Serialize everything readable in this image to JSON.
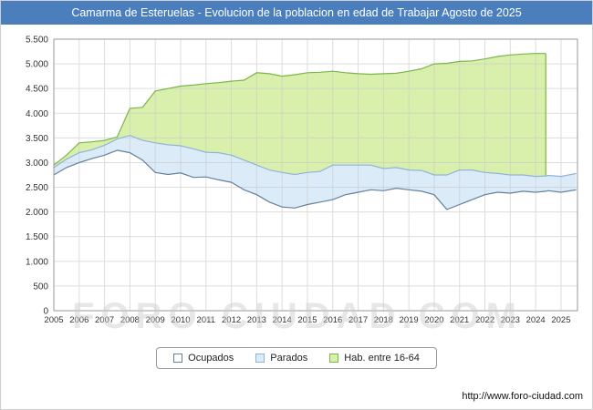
{
  "title": "Camarma de Esteruelas - Evolucion de la poblacion en edad de Trabajar Agosto de 2025",
  "watermark": "FORO-CIUDAD.COM",
  "footer": {
    "url": "http://www.foro-ciudad.com"
  },
  "colors": {
    "titlebar": "#4a7ebd",
    "grid": "#c8c8c8",
    "plot_border": "#999999",
    "axis_text": "#333333"
  },
  "legend": {
    "items": [
      {
        "label": "Ocupados",
        "fill": "#ffffff",
        "stroke": "#64809c"
      },
      {
        "label": "Parados",
        "fill": "#dcebf8",
        "stroke": "#8fb4d8"
      },
      {
        "label": "Hab. entre 16-64",
        "fill": "#d9f0ad",
        "stroke": "#7ab648"
      }
    ]
  },
  "chart_data": {
    "type": "area",
    "title": "Camarma de Esteruelas - Evolucion de la poblacion en edad de Trabajar Agosto de 2025",
    "legend_position": "bottom",
    "grid": true,
    "xlim": [
      2005,
      2025.65
    ],
    "ylim": [
      0,
      5500
    ],
    "yticks": [
      0,
      500,
      1000,
      1500,
      2000,
      2500,
      3000,
      3500,
      4000,
      4500,
      5000,
      5500
    ],
    "ytick_labels": [
      "0",
      "500",
      "1.000",
      "1.500",
      "2.000",
      "2.500",
      "3.000",
      "3.500",
      "4.000",
      "4.500",
      "5.000",
      "5.500"
    ],
    "xticks": [
      2005,
      2006,
      2007,
      2008,
      2009,
      2010,
      2011,
      2012,
      2013,
      2014,
      2015,
      2016,
      2017,
      2018,
      2019,
      2020,
      2021,
      2022,
      2023,
      2024,
      2025
    ],
    "x": [
      2005,
      2005.5,
      2006,
      2006.5,
      2007,
      2007.5,
      2008,
      2008.5,
      2009,
      2009.5,
      2010,
      2010.5,
      2011,
      2011.5,
      2012,
      2012.5,
      2013,
      2013.5,
      2014,
      2014.5,
      2015,
      2015.5,
      2016,
      2016.5,
      2017,
      2017.5,
      2018,
      2018.5,
      2019,
      2019.5,
      2020,
      2020.5,
      2021,
      2021.5,
      2022,
      2022.5,
      2023,
      2023.5,
      2024,
      2024.4,
      2024.5,
      2025,
      2025.6
    ],
    "series": [
      {
        "name": "Ocupados",
        "fill": "#ffffff",
        "stroke": "#64809c",
        "values": [
          2750,
          2900,
          3000,
          3080,
          3150,
          3250,
          3200,
          3050,
          2800,
          2760,
          2790,
          2700,
          2710,
          2650,
          2600,
          2450,
          2350,
          2200,
          2100,
          2080,
          2150,
          2200,
          2250,
          2350,
          2400,
          2450,
          2430,
          2480,
          2450,
          2420,
          2350,
          2050,
          2150,
          2250,
          2350,
          2400,
          2380,
          2420,
          2400,
          2420,
          2430,
          2400,
          2450
        ]
      },
      {
        "name": "Parados",
        "fill": "#dcebf8",
        "stroke": "#8fb4d8",
        "stacked_on": "Ocupados",
        "values": [
          150,
          170,
          200,
          180,
          200,
          230,
          350,
          400,
          600,
          600,
          550,
          580,
          500,
          550,
          550,
          600,
          600,
          650,
          700,
          680,
          650,
          620,
          700,
          600,
          550,
          500,
          450,
          420,
          400,
          420,
          400,
          700,
          700,
          600,
          450,
          380,
          370,
          330,
          320,
          310,
          310,
          320,
          330
        ]
      },
      {
        "name": "Hab. entre 16-64",
        "fill": "#d9f0ad",
        "stroke": "#7ab648",
        "values": [
          2950,
          3150,
          3400,
          3420,
          3450,
          3520,
          4100,
          4120,
          4450,
          4500,
          4550,
          4570,
          4600,
          4620,
          4650,
          4670,
          4820,
          4800,
          4750,
          4780,
          4820,
          4830,
          4850,
          4820,
          4800,
          4790,
          4800,
          4810,
          4850,
          4900,
          5000,
          5010,
          5050,
          5060,
          5100,
          5150,
          5180,
          5200,
          5210,
          5210,
          null,
          null,
          null
        ]
      }
    ]
  }
}
